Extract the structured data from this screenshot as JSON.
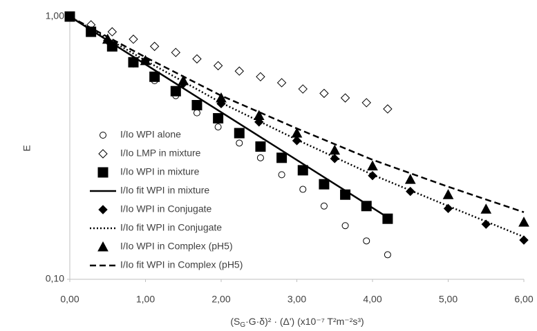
{
  "chart_data": {
    "type": "scatter",
    "y_label": "E",
    "x_label": [
      "(S",
      "G",
      "·G·δ)² · (Δ') (x10⁻⁷ T²m⁻²s³)"
    ],
    "log_y": true,
    "xlim": [
      0,
      6
    ],
    "ylim": [
      0.1,
      1
    ],
    "xticks": [
      {
        "value": 0,
        "label": "0,00"
      },
      {
        "value": 1,
        "label": "1,00"
      },
      {
        "value": 2,
        "label": "2,00"
      },
      {
        "value": 3,
        "label": "3,00"
      },
      {
        "value": 4,
        "label": "4,00"
      },
      {
        "value": 5,
        "label": "5,00"
      },
      {
        "value": 6,
        "label": "6,00"
      }
    ],
    "yticks": [
      {
        "value": 0.1,
        "label": "0,10"
      },
      {
        "value": 1,
        "label": "1,00"
      }
    ],
    "legend": "left",
    "series": [
      {
        "name": "I/Io WPI alone",
        "marker": "circle",
        "filled": false,
        "color": "#000000",
        "x": [
          0,
          0.28,
          0.56,
          0.84,
          1.12,
          1.4,
          1.68,
          1.96,
          2.24,
          2.52,
          2.8,
          3.08,
          3.36,
          3.64,
          3.92,
          4.2
        ],
        "values": [
          1.0,
          0.87,
          0.76,
          0.66,
          0.57,
          0.5,
          0.43,
          0.38,
          0.33,
          0.29,
          0.25,
          0.22,
          0.19,
          0.16,
          0.14,
          0.124
        ]
      },
      {
        "name": "I/Io LMP in mixture",
        "marker": "diamond",
        "filled": false,
        "color": "#000000",
        "x": [
          0,
          0.28,
          0.56,
          0.84,
          1.12,
          1.4,
          1.68,
          1.96,
          2.24,
          2.52,
          2.8,
          3.08,
          3.36,
          3.64,
          3.92,
          4.2
        ],
        "values": [
          1.0,
          0.93,
          0.875,
          0.82,
          0.77,
          0.73,
          0.69,
          0.65,
          0.62,
          0.59,
          0.56,
          0.53,
          0.51,
          0.49,
          0.47,
          0.445
        ]
      },
      {
        "name": "I/Io WPI in mixture",
        "marker": "square",
        "filled": true,
        "color": "#000000",
        "x": [
          0,
          0.28,
          0.56,
          0.84,
          1.12,
          1.4,
          1.68,
          1.96,
          2.24,
          2.52,
          2.8,
          3.08,
          3.36,
          3.64,
          3.92,
          4.2
        ],
        "values": [
          1.0,
          0.875,
          0.77,
          0.67,
          0.59,
          0.52,
          0.46,
          0.41,
          0.36,
          0.32,
          0.29,
          0.26,
          0.23,
          0.21,
          0.19,
          0.17
        ]
      },
      {
        "name": "I/Io fit WPI in mixture",
        "line": "solid",
        "color": "#000000",
        "x": [
          0,
          4.2
        ],
        "values": [
          1.0,
          0.172
        ]
      },
      {
        "name": "I/Io WPI in Conjugate",
        "marker": "diamond",
        "filled": true,
        "color": "#000000",
        "x": [
          0.5,
          1,
          1.5,
          2,
          2.5,
          3,
          3.5,
          4,
          4.5,
          5,
          5.5,
          6
        ],
        "values": [
          0.81,
          0.68,
          0.556,
          0.466,
          0.397,
          0.337,
          0.288,
          0.248,
          0.216,
          0.186,
          0.162,
          0.141
        ]
      },
      {
        "name": "I/Io fit WPI in Conjugate",
        "line": "dotted",
        "color": "#000000",
        "x": [
          0,
          1,
          2,
          3,
          4,
          5,
          6
        ],
        "values": [
          1.0,
          0.68,
          0.47,
          0.34,
          0.25,
          0.19,
          0.145
        ]
      },
      {
        "name": "I/Io WPI in Complex (pH5)",
        "marker": "triangle",
        "filled": true,
        "color": "#000000",
        "x": [
          0.5,
          1,
          1.5,
          2,
          2.5,
          3,
          3.5,
          4,
          4.5,
          5,
          5.5,
          6
        ],
        "values": [
          0.82,
          0.68,
          0.57,
          0.49,
          0.42,
          0.36,
          0.31,
          0.27,
          0.24,
          0.21,
          0.185,
          0.165
        ]
      },
      {
        "name": "I/Io fit WPI in Complex (pH5)",
        "line": "dashed",
        "color": "#000000",
        "x": [
          0,
          1,
          2,
          3,
          4,
          5,
          6
        ],
        "values": [
          1.0,
          0.7,
          0.5,
          0.375,
          0.285,
          0.225,
          0.18
        ]
      }
    ]
  }
}
